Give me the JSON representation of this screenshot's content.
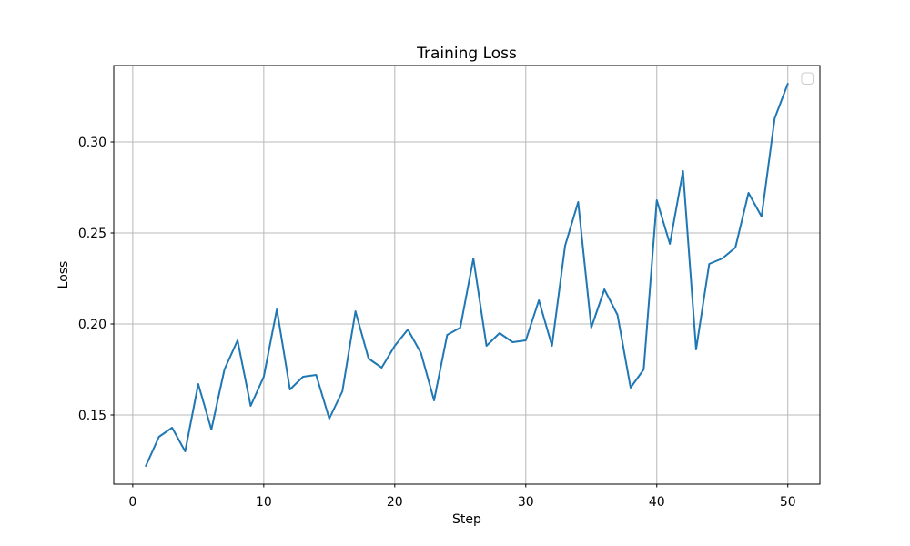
{
  "chart_data": {
    "type": "line",
    "title": "Training Loss",
    "xlabel": "Step",
    "ylabel": "Loss",
    "x": [
      1,
      2,
      3,
      4,
      5,
      6,
      7,
      8,
      9,
      10,
      11,
      12,
      13,
      14,
      15,
      16,
      17,
      18,
      19,
      20,
      21,
      22,
      23,
      24,
      25,
      26,
      27,
      28,
      29,
      30,
      31,
      32,
      33,
      34,
      35,
      36,
      37,
      38,
      39,
      40,
      41,
      42,
      43,
      44,
      45,
      46,
      47,
      48,
      49,
      50
    ],
    "series": [
      {
        "name": "",
        "color": "#1f77b4",
        "values": [
          0.122,
          0.138,
          0.143,
          0.13,
          0.167,
          0.142,
          0.175,
          0.191,
          0.155,
          0.171,
          0.208,
          0.164,
          0.171,
          0.172,
          0.148,
          0.163,
          0.207,
          0.181,
          0.176,
          0.188,
          0.197,
          0.184,
          0.158,
          0.194,
          0.198,
          0.236,
          0.188,
          0.195,
          0.19,
          0.191,
          0.213,
          0.188,
          0.243,
          0.267,
          0.198,
          0.219,
          0.205,
          0.165,
          0.175,
          0.268,
          0.244,
          0.284,
          0.186,
          0.233,
          0.236,
          0.242,
          0.272,
          0.259,
          0.313,
          0.332
        ]
      }
    ],
    "x_ticks": [
      0,
      10,
      20,
      30,
      40,
      50
    ],
    "x_tick_labels": [
      "0",
      "10",
      "20",
      "30",
      "40",
      "50"
    ],
    "y_ticks": [
      0.15,
      0.2,
      0.25,
      0.3
    ],
    "y_tick_labels": [
      "0.15",
      "0.20",
      "0.25",
      "0.30"
    ],
    "xlim": [
      -1.45,
      52.45
    ],
    "ylim": [
      0.112,
      0.342
    ],
    "grid": true,
    "legend_position": "upper right",
    "legend_empty": true,
    "colors": {
      "line": "#1f77b4",
      "grid": "#b8b8b8",
      "spine": "#000000",
      "legend_border": "#cccccc",
      "background": "#ffffff"
    }
  }
}
